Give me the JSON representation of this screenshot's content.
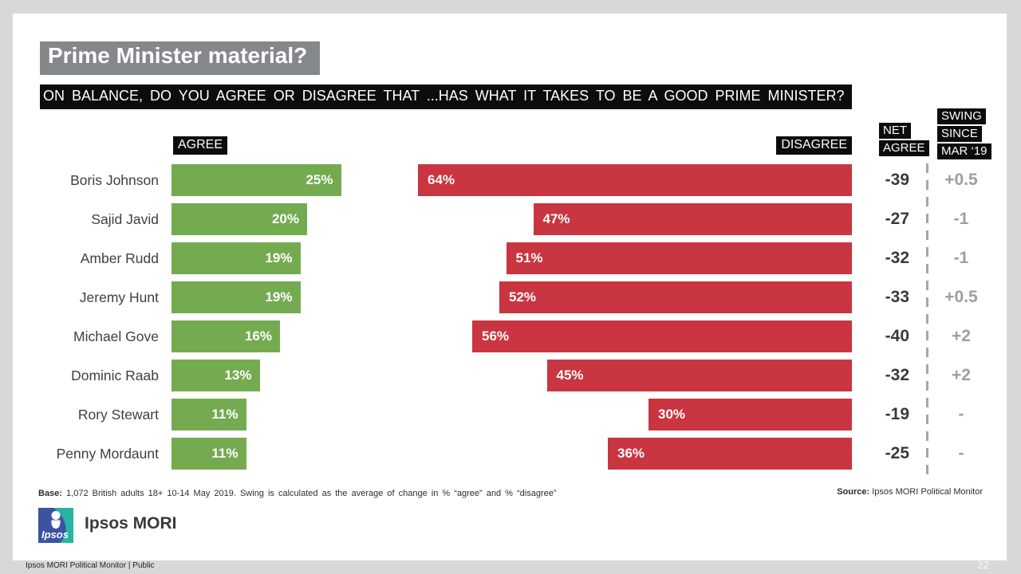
{
  "chart_data": {
    "type": "bar",
    "variant": "diverging-horizontal",
    "title": "Prime Minister material?",
    "question": "ON BALANCE, DO YOU AGREE OR DISAGREE THAT ...HAS WHAT IT TAKES TO BE A GOOD PRIME MINISTER?",
    "categories": [
      "Boris Johnson",
      "Sajid Javid",
      "Amber Rudd",
      "Jeremy Hunt",
      "Michael Gove",
      "Dominic Raab",
      "Rory Stewart",
      "Penny Mordaunt"
    ],
    "series": [
      {
        "name": "Agree",
        "color": "#74ab50",
        "values": [
          25,
          20,
          19,
          19,
          16,
          13,
          11,
          11
        ]
      },
      {
        "name": "Disagree",
        "color": "#c93540",
        "values": [
          64,
          47,
          51,
          52,
          56,
          45,
          30,
          36
        ]
      }
    ],
    "value_unit": "%",
    "column_labels": {
      "agree": "AGREE",
      "disagree": "DISAGREE"
    },
    "net_agree": {
      "header": [
        "NET",
        "AGREE"
      ],
      "values": [
        "-39",
        "-27",
        "-32",
        "-33",
        "-40",
        "-32",
        "-19",
        "-25"
      ]
    },
    "swing": {
      "header": [
        "SWING",
        "SINCE",
        "MAR ‘19"
      ],
      "values": [
        "+0.5",
        "-1",
        "-1",
        "+0.5",
        "+2",
        "+2",
        "-",
        "-"
      ]
    }
  },
  "footer": {
    "base_label": "Base:",
    "base_text": "1,072 British adults 18+ 10-14 May 2019. Swing is calculated as the average of change in % “agree” and % “disagree”",
    "source_label": "Source:",
    "source_text": "Ipsos MORI Political Monitor"
  },
  "brand": {
    "logo_text": "Ipsos",
    "name": "Ipsos MORI",
    "logo_blue": "#3e53a0",
    "logo_teal": "#28b3a3"
  },
  "statusbar": {
    "left_text": "Ipsos MORI Political Monitor | Public",
    "page_number": "22"
  },
  "colors": {
    "title_bg": "#84888b",
    "label_bg": "#0c0c0c",
    "agree_green": "#74ab50",
    "disagree_red": "#c93540",
    "net_text": "#3a3a3a",
    "swing_text": "#9e9e9e"
  }
}
